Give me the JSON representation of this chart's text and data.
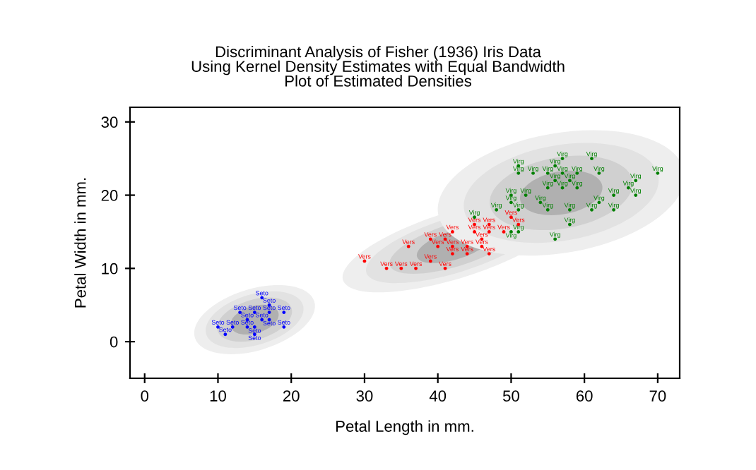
{
  "chart_data": {
    "type": "scatter",
    "title": "Discriminant Analysis of Fisher (1936) Iris Data\nUsing Kernel Density Estimates with Equal Bandwidth\nPlot of Estimated Densities",
    "xlabel": "Petal Length in mm.",
    "ylabel": "Petal Width in mm.",
    "xlim": [
      -2,
      73
    ],
    "ylim": [
      -5,
      32
    ],
    "xticks": [
      0,
      10,
      20,
      30,
      40,
      50,
      60,
      70
    ],
    "yticks": [
      0,
      10,
      20,
      30
    ],
    "grid": false,
    "legend": false,
    "series": [
      {
        "name": "Seto",
        "color": "#0000ff",
        "x": [
          16,
          17,
          13,
          15,
          17,
          19,
          14,
          16,
          17,
          10,
          12,
          14,
          15,
          19,
          11,
          15
        ],
        "values": [
          6,
          5,
          4,
          4,
          4,
          4,
          3,
          3,
          3,
          2,
          2,
          2,
          2,
          2,
          1,
          1
        ]
      },
      {
        "name": "Vers",
        "color": "#ff0000",
        "x": [
          30,
          33,
          35,
          37,
          41,
          36,
          39,
          39,
          40,
          42,
          44,
          46,
          42,
          44,
          47,
          41,
          46,
          42,
          45,
          47,
          49,
          45,
          47,
          51,
          50
        ],
        "values": [
          11,
          10,
          10,
          10,
          10,
          13,
          11,
          14,
          13,
          13,
          13,
          13,
          12,
          12,
          12,
          14,
          14,
          15,
          15,
          15,
          15,
          16,
          16,
          16,
          17
        ]
      },
      {
        "name": "Virg",
        "color": "#008000",
        "x": [
          57,
          61,
          51,
          56,
          51,
          53,
          55,
          57,
          59,
          62,
          70,
          56,
          58,
          67,
          55,
          57,
          59,
          66,
          50,
          52,
          64,
          67,
          50,
          54,
          62,
          48,
          51,
          55,
          58,
          61,
          64,
          45,
          58,
          50,
          56,
          51
        ],
        "values": [
          25,
          25,
          24,
          24,
          23,
          23,
          23,
          23,
          23,
          23,
          23,
          22,
          22,
          22,
          21,
          21,
          21,
          21,
          20,
          20,
          20,
          20,
          19,
          19,
          19,
          18,
          18,
          18,
          18,
          18,
          18,
          17,
          16,
          15,
          14,
          15
        ]
      }
    ]
  }
}
